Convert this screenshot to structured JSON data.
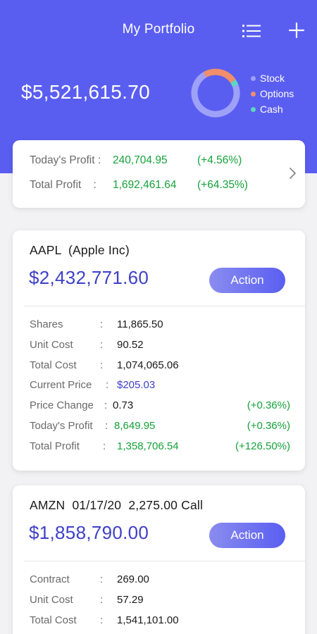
{
  "header": {
    "title": "My Portfolio",
    "menu_icon": "list-icon",
    "add_icon": "plus-icon",
    "balance": "$5,521,615.70",
    "allocation": {
      "stock_fraction": 0.72,
      "options_fraction": 0.24,
      "cash_fraction": 0.04
    },
    "legend": [
      {
        "label": "Stock",
        "color": "#9ea1f8"
      },
      {
        "label": "Options",
        "color": "#ef8f6b"
      },
      {
        "label": "Cash",
        "color": "#5dd6c4"
      }
    ]
  },
  "summary": {
    "todays_profit_label": "Today's Profit :",
    "todays_profit_value": "240,704.95",
    "todays_profit_pct": "(+4.56%)",
    "total_profit_label": "Total Profit    :",
    "total_profit_value": "1,692,461.64",
    "total_profit_pct": "(+64.35%)",
    "chevron_icon": "chevron-right-icon"
  },
  "holdings": [
    {
      "title": "AAPL  (Apple Inc)",
      "value": "$2,432,771.60",
      "action_label": "Action",
      "rows": [
        {
          "label": "Shares",
          "colon": ":",
          "value": "11,865.50",
          "pct": ""
        },
        {
          "label": "Unit Cost",
          "colon": ":",
          "value": "90.52",
          "pct": ""
        },
        {
          "label": "Total Cost",
          "colon": ":",
          "value": "1,074,065.06",
          "pct": ""
        },
        {
          "label": "Current Price",
          "colon": ":",
          "value": "$205.03",
          "pct": ""
        },
        {
          "label": "Price Change",
          "colon": ":",
          "value": "0.73",
          "pct": "(+0.36%)"
        },
        {
          "label": "Today's Profit",
          "colon": ":",
          "value": "8,649.95",
          "pct": "(+0.36%)"
        },
        {
          "label": "Total Profit",
          "colon": ":",
          "value": "1,358,706.54",
          "pct": "(+126.50%)"
        }
      ]
    },
    {
      "title": "AMZN  01/17/20  2,275.00 Call",
      "value": "$1,858,790.00",
      "action_label": "Action",
      "rows": [
        {
          "label": "Contract",
          "colon": ":",
          "value": "269.00",
          "pct": ""
        },
        {
          "label": "Unit Cost",
          "colon": ":",
          "value": "57.29",
          "pct": ""
        },
        {
          "label": "Total Cost",
          "colon": ":",
          "value": "1,541,101.00",
          "pct": ""
        }
      ]
    }
  ],
  "colors": {
    "header_bg": "#5a5ef0",
    "value_blue": "#3e40c8",
    "profit_green": "#15a23a"
  }
}
